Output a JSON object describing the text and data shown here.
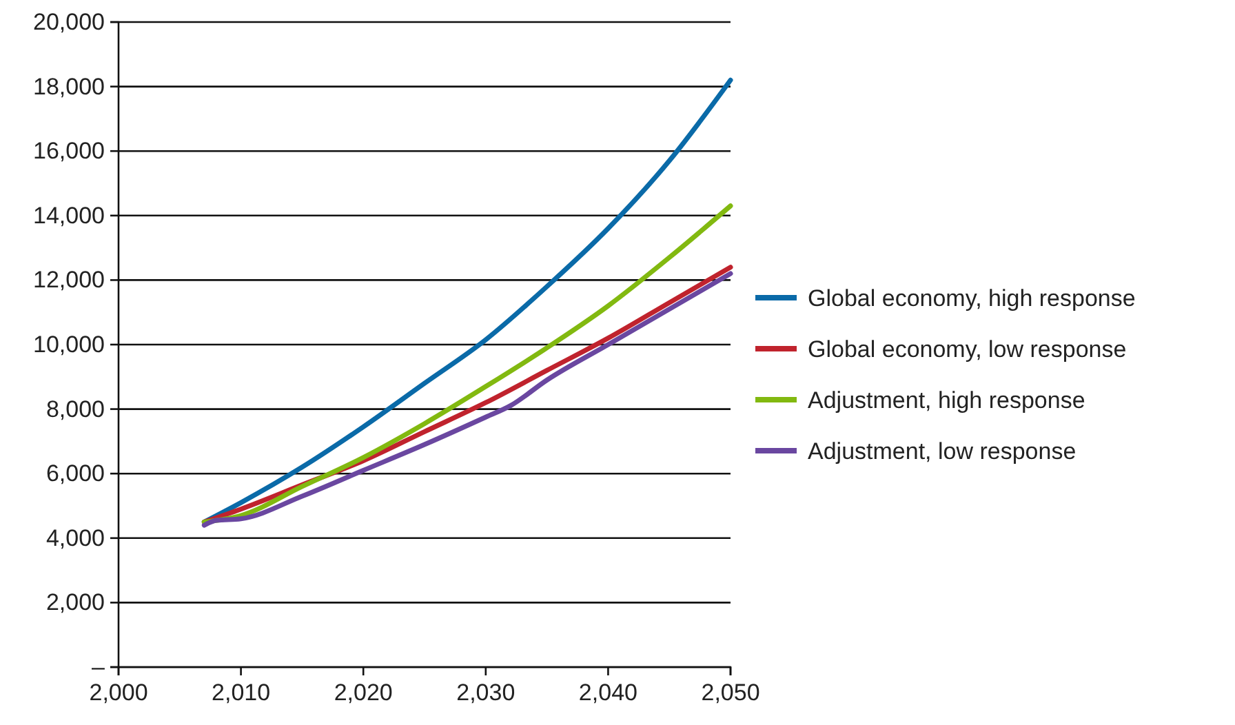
{
  "chart_data": {
    "type": "line",
    "x": [
      2007,
      2010,
      2015,
      2020,
      2025,
      2030,
      2035,
      2040,
      2045,
      2050
    ],
    "series": [
      {
        "name": "Global economy, high response",
        "color": "#0a6aa8",
        "values": [
          4500,
          5100,
          6200,
          7450,
          8800,
          10150,
          11800,
          13600,
          15700,
          18200
        ]
      },
      {
        "name": "Global economy, low response",
        "color": "#c0232d",
        "values": [
          4500,
          4900,
          5650,
          6400,
          7300,
          8200,
          9200,
          10200,
          11300,
          12400
        ]
      },
      {
        "name": "Adjustment, high response",
        "color": "#82b910",
        "values": [
          4500,
          4700,
          5600,
          6500,
          7550,
          8700,
          9900,
          11200,
          12700,
          14300
        ]
      },
      {
        "name": "Adjustment, low response",
        "color": "#6a47a0",
        "x": [
          2007,
          2008,
          2010,
          2015,
          2020,
          2025,
          2030,
          2032,
          2035,
          2040,
          2045,
          2050
        ],
        "values": [
          4400,
          4550,
          4600,
          5300,
          6100,
          6900,
          7750,
          8100,
          8900,
          10000,
          11100,
          12200
        ]
      }
    ],
    "xlim": [
      2000,
      2050
    ],
    "xticks": [
      {
        "value": 2000,
        "label": "2,000"
      },
      {
        "value": 2010,
        "label": "2,010"
      },
      {
        "value": 2020,
        "label": "2,020"
      },
      {
        "value": 2030,
        "label": "2,030"
      },
      {
        "value": 2040,
        "label": "2,040"
      },
      {
        "value": 2050,
        "label": "2,050"
      }
    ],
    "ylim": [
      0,
      20000
    ],
    "yticks": [
      {
        "value": 0,
        "label": "–"
      },
      {
        "value": 2000,
        "label": "2,000"
      },
      {
        "value": 4000,
        "label": "4,000"
      },
      {
        "value": 6000,
        "label": "6,000"
      },
      {
        "value": 8000,
        "label": "8,000"
      },
      {
        "value": 10000,
        "label": "10,000"
      },
      {
        "value": 12000,
        "label": "12,000"
      },
      {
        "value": 14000,
        "label": "14,000"
      },
      {
        "value": 16000,
        "label": "16,000"
      },
      {
        "value": 18000,
        "label": "18,000"
      },
      {
        "value": 20000,
        "label": "20,000"
      }
    ],
    "grid": "y",
    "legend": "right",
    "marker": "none",
    "line_style": "solid"
  }
}
